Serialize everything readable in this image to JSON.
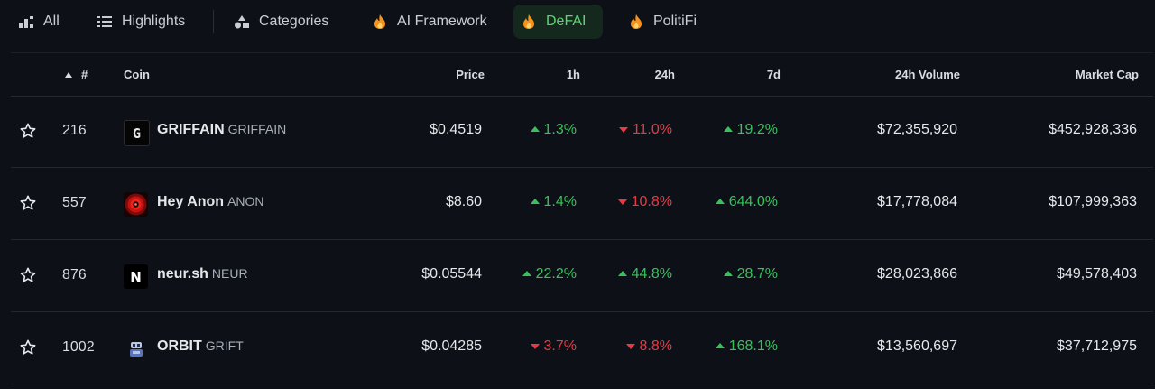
{
  "tabs": [
    {
      "label": "All",
      "icon": "bar-chart-icon"
    },
    {
      "label": "Highlights",
      "icon": "list-icon"
    },
    {
      "label": "Categories",
      "icon": "shapes-icon"
    },
    {
      "label": "AI Framework",
      "icon": "fire-icon"
    },
    {
      "label": "DeFAI",
      "icon": "fire-icon",
      "active": true
    },
    {
      "label": "PolitiFi",
      "icon": "fire-icon"
    }
  ],
  "header": {
    "rank": "#",
    "coin": "Coin",
    "price": "Price",
    "h1": "1h",
    "h24": "24h",
    "d7": "7d",
    "volume": "24h Volume",
    "mcap": "Market Cap"
  },
  "rows": [
    {
      "rank": "216",
      "name": "GRIFFAIN",
      "symbol": "GRIFFAIN",
      "price": "$0.4519",
      "h1": "1.3%",
      "h1_dir": "up",
      "h24": "11.0%",
      "h24_dir": "down",
      "d7": "19.2%",
      "d7_dir": "up",
      "volume": "$72,355,920",
      "mcap": "$452,928,336",
      "logo": "G"
    },
    {
      "rank": "557",
      "name": "Hey Anon",
      "symbol": "ANON",
      "price": "$8.60",
      "h1": "1.4%",
      "h1_dir": "up",
      "h24": "10.8%",
      "h24_dir": "down",
      "d7": "644.0%",
      "d7_dir": "up",
      "volume": "$17,778,084",
      "mcap": "$107,999,363",
      "logo": ""
    },
    {
      "rank": "876",
      "name": "neur.sh",
      "symbol": "NEUR",
      "price": "$0.05544",
      "h1": "22.2%",
      "h1_dir": "up",
      "h24": "44.8%",
      "h24_dir": "up",
      "d7": "28.7%",
      "d7_dir": "up",
      "volume": "$28,023,866",
      "mcap": "$49,578,403",
      "logo": "N"
    },
    {
      "rank": "1002",
      "name": "ORBIT",
      "symbol": "GRIFT",
      "price": "$0.04285",
      "h1": "3.7%",
      "h1_dir": "down",
      "h24": "8.8%",
      "h24_dir": "down",
      "d7": "168.1%",
      "d7_dir": "up",
      "volume": "$13,560,697",
      "mcap": "$37,712,975",
      "logo": ""
    }
  ],
  "colors": {
    "up": "#39c15b",
    "down": "#ea3943",
    "active_tab": "#5cd66f",
    "background": "#0d1117"
  }
}
